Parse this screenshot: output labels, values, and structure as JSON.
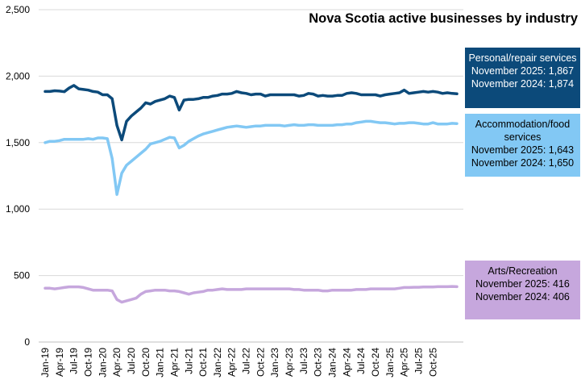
{
  "chart_data": {
    "type": "line",
    "title": "Nova Scotia active businesses by industry",
    "xlabel": "",
    "ylabel": "",
    "ylim": [
      0,
      2500
    ],
    "yticks": [
      "0",
      "500",
      "1,000",
      "1,500",
      "2,000",
      "2,500"
    ],
    "ytick_values": [
      0,
      500,
      1000,
      1500,
      2000,
      2500
    ],
    "xtick_labels": [
      "Jan-19",
      "Apr-19",
      "Jul-19",
      "Oct-19",
      "Jan-20",
      "Apr-20",
      "Jul-20",
      "Oct-20",
      "Jan-21",
      "Apr-21",
      "Jul-21",
      "Oct-21",
      "Jan-22",
      "Apr-22",
      "Jul-22",
      "Oct-22",
      "Jan-23",
      "Apr-23",
      "Jul-23",
      "Oct-23",
      "Jan-24",
      "Apr-24",
      "Jul-24",
      "Oct-24",
      "Jan-25",
      "Apr-25",
      "Jul-25",
      "Oct-25"
    ],
    "start_month": "Jan-19",
    "grid": true,
    "legend_position": "right",
    "series": [
      {
        "name": "Personal/repair services",
        "color": "#0c4a7a",
        "values": [
          1885,
          1885,
          1890,
          1888,
          1883,
          1910,
          1930,
          1905,
          1900,
          1895,
          1885,
          1880,
          1860,
          1860,
          1830,
          1630,
          1520,
          1660,
          1700,
          1730,
          1760,
          1800,
          1790,
          1810,
          1820,
          1830,
          1850,
          1840,
          1745,
          1820,
          1825,
          1825,
          1830,
          1840,
          1840,
          1850,
          1855,
          1865,
          1865,
          1870,
          1885,
          1875,
          1870,
          1860,
          1865,
          1865,
          1850,
          1860,
          1860,
          1860,
          1860,
          1860,
          1860,
          1850,
          1855,
          1870,
          1865,
          1850,
          1855,
          1850,
          1850,
          1855,
          1855,
          1870,
          1875,
          1870,
          1860,
          1860,
          1860,
          1860,
          1850,
          1860,
          1865,
          1870,
          1875,
          1895,
          1870,
          1875,
          1880,
          1885,
          1880,
          1885,
          1880,
          1870,
          1875,
          1870,
          1867
        ],
        "legend_lines": [
          "November 2025:  1,867",
          "November 2024:  1,874"
        ]
      },
      {
        "name": "Accommodation/food services",
        "color": "#82c8f4",
        "values": [
          1500,
          1510,
          1510,
          1515,
          1525,
          1525,
          1525,
          1525,
          1525,
          1530,
          1525,
          1535,
          1535,
          1530,
          1380,
          1110,
          1270,
          1330,
          1360,
          1390,
          1420,
          1450,
          1490,
          1500,
          1510,
          1525,
          1540,
          1535,
          1460,
          1480,
          1510,
          1530,
          1550,
          1565,
          1575,
          1585,
          1595,
          1605,
          1615,
          1620,
          1625,
          1620,
          1615,
          1620,
          1625,
          1625,
          1630,
          1630,
          1630,
          1630,
          1625,
          1630,
          1635,
          1630,
          1630,
          1635,
          1635,
          1630,
          1630,
          1630,
          1630,
          1635,
          1635,
          1640,
          1640,
          1650,
          1655,
          1660,
          1660,
          1655,
          1650,
          1650,
          1645,
          1640,
          1645,
          1645,
          1650,
          1650,
          1645,
          1640,
          1640,
          1650,
          1640,
          1640,
          1640,
          1645,
          1643
        ],
        "legend_lines": [
          "November 2025:  1,643",
          "November 2024:  1,650"
        ]
      },
      {
        "name": "Arts/Recreation",
        "color": "#c6a7dd",
        "values": [
          405,
          405,
          400,
          405,
          410,
          415,
          415,
          415,
          410,
          400,
          390,
          390,
          390,
          390,
          385,
          320,
          300,
          310,
          320,
          330,
          360,
          380,
          385,
          390,
          390,
          390,
          385,
          385,
          380,
          370,
          360,
          370,
          375,
          380,
          390,
          390,
          395,
          400,
          395,
          395,
          395,
          395,
          400,
          400,
          400,
          400,
          400,
          400,
          400,
          400,
          400,
          400,
          395,
          395,
          390,
          390,
          390,
          390,
          385,
          385,
          390,
          390,
          390,
          390,
          390,
          395,
          395,
          395,
          400,
          400,
          400,
          400,
          400,
          400,
          405,
          410,
          410,
          412,
          412,
          414,
          414,
          414,
          416,
          416,
          416,
          418,
          416
        ],
        "legend_lines": [
          "November 2025:  416",
          "November 2024:  406"
        ]
      }
    ]
  }
}
